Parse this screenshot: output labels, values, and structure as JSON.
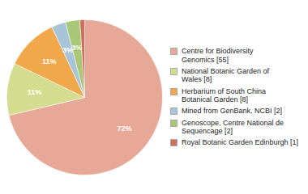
{
  "chart_data": {
    "type": "pie",
    "categories": [
      "Centre for Biodiversity\nGenomics [55]",
      "National Botanic Garden of\nWales [8]",
      "Herbarium of South China\nBotanical Garden [8]",
      "Mined from GenBank, NCBI [2]",
      "Genoscope, Centre National de\nSequencage [2]",
      "Royal Botanic Garden Edinburgh [1]"
    ],
    "values": [
      72,
      11,
      11,
      3,
      3,
      1
    ],
    "value_labels": [
      "72%",
      "11%",
      "11%",
      "3%",
      "3%",
      null
    ],
    "colors": [
      "#E8A898",
      "#D4DC90",
      "#F0A84A",
      "#A8C4D8",
      "#A8C878",
      "#CC7060"
    ],
    "data_labels": true,
    "legend": "right"
  }
}
